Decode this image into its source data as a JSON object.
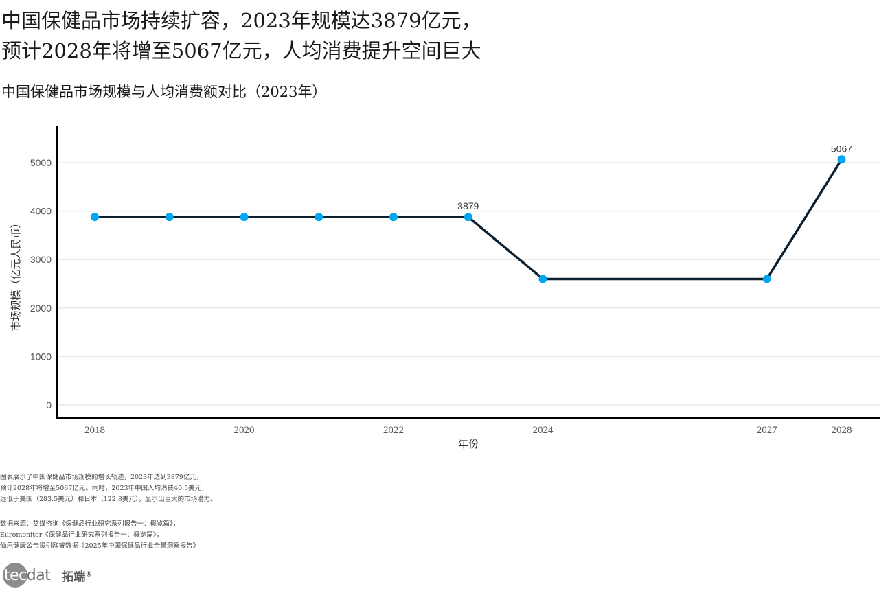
{
  "headline": {
    "line1": "中国保健品市场持续扩容，2023年规模达3879亿元，",
    "line2": "预计2028年将增至5067亿元，人均消费提升空间巨大"
  },
  "subtitle": "中国保健品市场规模与人均消费额对比（2023年）",
  "chart_data": {
    "type": "line",
    "title": "中国保健品市场规模与人均消费额对比（2023年）",
    "xlabel": "年份",
    "ylabel": "市场规模（亿元人民币）",
    "x": [
      2018,
      2019,
      2020,
      2021,
      2022,
      2023,
      2024,
      2027,
      2028
    ],
    "series": [
      {
        "name": "市场规模",
        "values": [
          3879,
          3879,
          3879,
          3879,
          3879,
          3879,
          2600,
          2600,
          5067
        ],
        "line_color": "#0b1f2e",
        "marker_color": "#00a6ee"
      }
    ],
    "data_labels": [
      {
        "x": 2023,
        "value": 3879,
        "text": "3879"
      },
      {
        "x": 2028,
        "value": 5067,
        "text": "5067"
      }
    ],
    "x_ticks": [
      2018,
      2020,
      2022,
      2024,
      2027,
      2028
    ],
    "y_ticks": [
      0,
      1000,
      2000,
      3000,
      4000,
      5000
    ],
    "xlim": [
      2017.2,
      2028.5
    ],
    "ylim": [
      -270,
      5800
    ],
    "grid": "horizontal",
    "legend": "none"
  },
  "notes": {
    "line1": "图表展示了中国保健品市场规模的增长轨迹，2023年达到3879亿元，",
    "line2": "预计2028年将增至5067亿元。同时，2023年中国人均消费40.5美元，",
    "line3": "远低于美国（283.5美元）和日本（122.8美元），显示出巨大的市场潜力。"
  },
  "sources": {
    "line1": "数据来源：艾媒咨询《保健品行业研究系列报告一：概览篇》；",
    "line2": "Euromonitor《保健品行业研究系列报告一：概览篇》；",
    "line3": "仙乐健康公告援引欧睿数据《2025年中国保健品行业全景洞察报告》"
  },
  "logo": {
    "tec": "tec",
    "dat": "dat",
    "cn": "拓端",
    "reg": "®"
  }
}
